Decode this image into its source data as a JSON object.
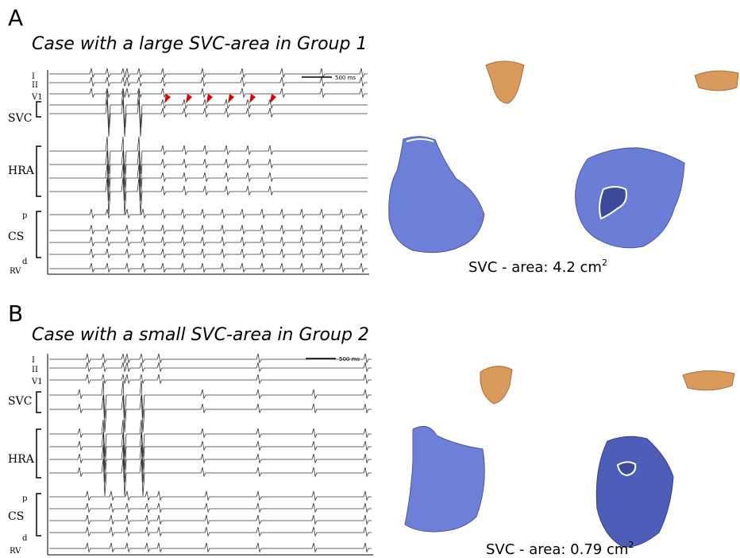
{
  "panels": [
    {
      "letter": "A",
      "title": "Case with a large SVC-area in Group 1",
      "leads": [
        "I",
        "II",
        "V1",
        "SVC",
        "HRA",
        "p",
        "CS",
        "d",
        "RV"
      ],
      "scale_bar": "500 ms",
      "area_label": {
        "text": "SVC - area: 4.2 cm",
        "superscript": "2"
      }
    },
    {
      "letter": "B",
      "title": "Case with a small SVC-area in Group 2",
      "leads": [
        "I",
        "II",
        "V1",
        "SVC",
        "HRA",
        "p",
        "CS",
        "d",
        "RV"
      ],
      "scale_bar": "500 ms",
      "area_label": {
        "text": "SVC - area: 0.79 cm",
        "superscript": "2"
      }
    }
  ]
}
